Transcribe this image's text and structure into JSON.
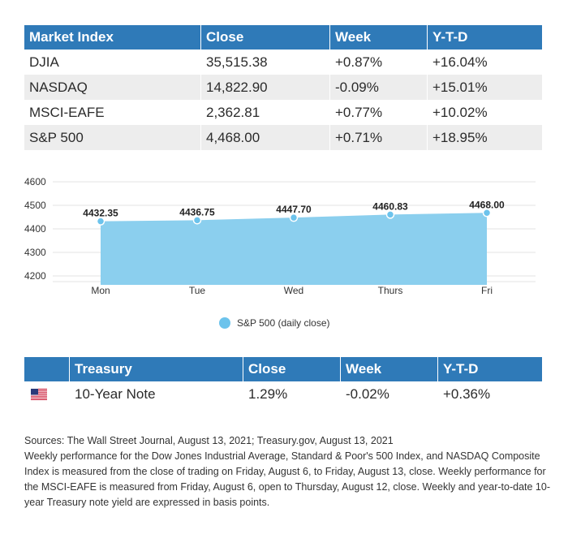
{
  "market_table": {
    "headers": [
      "Market Index",
      "Close",
      "Week",
      "Y-T-D"
    ],
    "rows": [
      [
        "DJIA",
        "35,515.38",
        "+0.87%",
        "+16.04%"
      ],
      [
        "NASDAQ",
        "14,822.90",
        "-0.09%",
        "+15.01%"
      ],
      [
        "MSCI-EAFE",
        "2,362.81",
        "+0.77%",
        "+10.02%"
      ],
      [
        "S&P 500",
        "4,468.00",
        "+0.71%",
        "+18.95%"
      ]
    ],
    "header_color": "#2f7ab8",
    "stripe_color": "#ededed"
  },
  "chart_data": {
    "type": "area",
    "categories": [
      "Mon",
      "Tue",
      "Wed",
      "Thurs",
      "Fri"
    ],
    "series": [
      {
        "name": "S&P 500 (daily close)",
        "values": [
          4432.35,
          4436.75,
          4447.7,
          4460.83,
          4468.0
        ]
      }
    ],
    "data_labels": [
      "4432.35",
      "4436.75",
      "4447.70",
      "4460.83",
      "4468.00"
    ],
    "yticks": [
      4200,
      4300,
      4400,
      4500,
      4600
    ],
    "ylim": [
      4200,
      4600
    ],
    "grid": true,
    "legend": "bottom",
    "fill_color": "#8bcfee",
    "point_color": "#6cc3ec"
  },
  "legend": {
    "label": "S&P 500 (daily close)"
  },
  "treasury_table": {
    "headers": [
      "",
      "Treasury",
      "Close",
      "Week",
      "Y-T-D"
    ],
    "row": {
      "flag_icon": "us-flag-icon",
      "name": "10-Year Note",
      "close": "1.29%",
      "week": "-0.02%",
      "ytd": "+0.36%"
    }
  },
  "notes": {
    "sources": "Sources: The Wall Street Journal, August 13, 2021; Treasury.gov, August 13, 2021",
    "body": "Weekly performance for the Dow Jones Industrial Average, Standard & Poor's 500 Index, and NASDAQ Composite Index is measured from the close of trading on Friday, August 6, to Friday, August 13, close. Weekly performance for the MSCI-EAFE is measured from Friday, August 6, open to Thursday, August 12, close. Weekly and year-to-date 10-year Treasury note yield are expressed in basis points."
  }
}
